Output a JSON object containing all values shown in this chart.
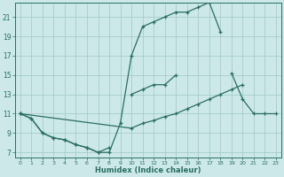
{
  "xlabel": "Humidex (Indice chaleur)",
  "xlim": [
    -0.5,
    23.5
  ],
  "ylim": [
    6.5,
    22.5
  ],
  "yticks": [
    7,
    9,
    11,
    13,
    15,
    17,
    19,
    21
  ],
  "xticks": [
    0,
    1,
    2,
    3,
    4,
    5,
    6,
    7,
    8,
    9,
    10,
    11,
    12,
    13,
    14,
    15,
    16,
    17,
    18,
    19,
    20,
    21,
    22,
    23
  ],
  "line_color": "#2a6e62",
  "bg_color": "#cce8e8",
  "grid_color": "#a0c8c8",
  "line1_x": [
    0,
    1,
    2,
    3,
    4,
    5,
    6,
    7,
    8,
    9,
    10,
    11,
    12,
    13,
    14,
    15,
    16,
    17,
    18,
    19,
    20,
    21,
    22,
    23
  ],
  "line1_y": [
    11,
    10.5,
    9,
    8.5,
    8.3,
    7.8,
    7.5,
    7.0,
    7.0,
    10,
    17,
    20,
    20.5,
    21,
    21.5,
    21.5,
    22,
    22.5,
    19.5,
    null,
    null,
    null,
    null,
    null
  ],
  "line2_x": [
    0,
    1,
    2,
    3,
    4,
    5,
    6,
    7,
    8,
    9,
    10,
    11,
    12,
    13,
    14,
    15,
    16,
    17,
    18,
    19,
    20,
    21,
    22,
    23
  ],
  "line2_y": [
    11,
    10.5,
    9,
    8.5,
    8.3,
    7.8,
    7.5,
    7.0,
    7.5,
    null,
    13,
    13.5,
    14,
    14,
    15,
    null,
    null,
    null,
    null,
    15.2,
    12.5,
    11,
    11,
    11
  ],
  "line3_x": [
    0,
    10,
    11,
    12,
    13,
    14,
    15,
    16,
    17,
    18,
    19,
    20,
    21,
    22,
    23
  ],
  "line3_y": [
    11,
    9.5,
    10,
    10.3,
    10.7,
    11,
    11.5,
    12,
    12.5,
    13,
    13.5,
    14,
    null,
    null,
    null
  ]
}
